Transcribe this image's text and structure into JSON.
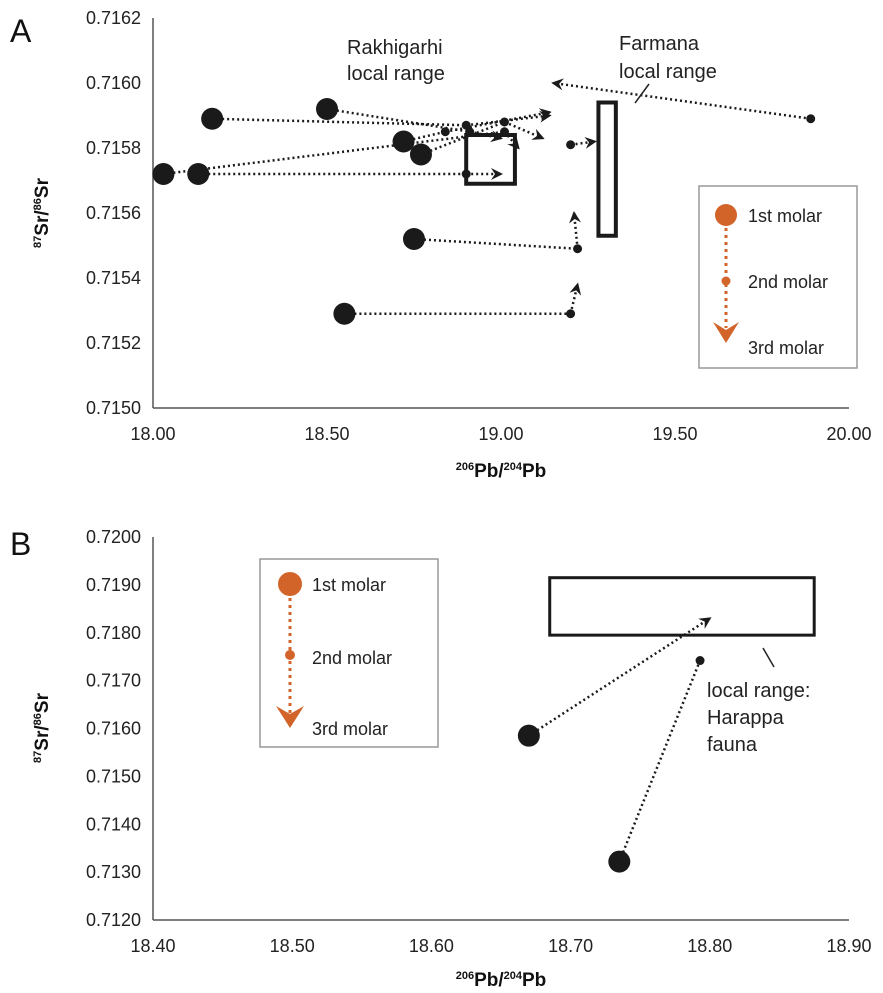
{
  "chart_data": [
    {
      "panel": "A",
      "type": "scatter",
      "xlabel": {
        "sup1": "206",
        "m1": "Pb/",
        "sup2": "204",
        "m2": "Pb"
      },
      "ylabel": {
        "sup1": "87",
        "m1": "Sr/",
        "sup2": "86",
        "m2": "Sr"
      },
      "xlim": [
        18.0,
        20.0
      ],
      "ylim": [
        0.715,
        0.7162
      ],
      "xticks": [
        "18.00",
        "18.50",
        "19.00",
        "19.50",
        "20.00"
      ],
      "yticks": [
        "0.7150",
        "0.7152",
        "0.7154",
        "0.7156",
        "0.7158",
        "0.7160",
        "0.7162"
      ],
      "grid": false,
      "local_ranges": [
        {
          "label_lines": [
            "Rakhigarhi",
            "local range"
          ],
          "x": [
            18.9,
            19.04
          ],
          "y": [
            0.71569,
            0.71584
          ]
        },
        {
          "label_lines": [
            "Farmana",
            "local range"
          ],
          "x": [
            19.28,
            19.33
          ],
          "y": [
            0.71553,
            0.71594
          ]
        }
      ],
      "individuals": [
        {
          "m1": [
            18.17,
            0.71589
          ],
          "m2": [
            18.9,
            0.71587
          ],
          "m3": [
            19.14,
            0.7159
          ]
        },
        {
          "m1": [
            18.5,
            0.71592
          ],
          "m2": [
            18.91,
            0.71585
          ],
          "m3": [
            19.0,
            0.71583
          ]
        },
        {
          "m1": [
            18.72,
            0.71582
          ],
          "m2": [
            18.84,
            0.71585
          ],
          "m3": [
            19.14,
            0.71591
          ]
        },
        {
          "m1": [
            18.77,
            0.71578
          ],
          "m2": [
            19.01,
            0.71588
          ],
          "m3": [
            19.12,
            0.71583
          ]
        },
        {
          "m1": [
            18.03,
            0.71572
          ],
          "m2": [
            19.01,
            0.71585
          ],
          "m3": [
            19.05,
            0.7158
          ]
        },
        {
          "m1": [
            18.13,
            0.71572
          ],
          "m2": [
            18.9,
            0.71572
          ],
          "m3": [
            19.0,
            0.71572
          ]
        },
        {
          "m1": [
            18.75,
            0.71552
          ],
          "m2": [
            19.22,
            0.71549
          ],
          "m3": [
            19.21,
            0.7156
          ]
        },
        {
          "m1": [
            18.55,
            0.71529
          ],
          "m2": [
            19.2,
            0.71529
          ],
          "m3": [
            19.22,
            0.71538
          ]
        },
        {
          "m2": [
            19.89,
            0.71589
          ],
          "m3": [
            19.15,
            0.716
          ]
        },
        {
          "m2": [
            19.2,
            0.71581
          ],
          "m3": [
            19.27,
            0.71582
          ]
        }
      ],
      "legend": {
        "position": "right",
        "entries": [
          "1st molar",
          "2nd molar",
          "3rd molar"
        ]
      }
    },
    {
      "panel": "B",
      "type": "scatter",
      "xlabel": {
        "sup1": "206",
        "m1": "Pb/",
        "sup2": "204",
        "m2": "Pb"
      },
      "ylabel": {
        "sup1": "87",
        "m1": "Sr/",
        "sup2": "86",
        "m2": "Sr"
      },
      "xlim": [
        18.4,
        18.9
      ],
      "ylim": [
        0.712,
        0.72
      ],
      "xticks": [
        "18.40",
        "18.50",
        "18.60",
        "18.70",
        "18.80",
        "18.90"
      ],
      "yticks": [
        "0.7120",
        "0.7130",
        "0.7140",
        "0.7150",
        "0.7160",
        "0.7170",
        "0.7180",
        "0.7190",
        "0.7200"
      ],
      "grid": false,
      "local_ranges": [
        {
          "label_lines": [
            "local range:",
            "Harappa",
            "fauna"
          ],
          "x": [
            18.685,
            18.875
          ],
          "y": [
            0.71795,
            0.71915
          ]
        }
      ],
      "individuals": [
        {
          "m1": [
            18.67,
            0.71585
          ],
          "m3": [
            18.8,
            0.7183
          ]
        },
        {
          "m1": [
            18.735,
            0.71322
          ],
          "m2": [
            18.793,
            0.71742
          ]
        }
      ],
      "legend": {
        "position": "upper-left",
        "entries": [
          "1st molar",
          "2nd molar",
          "3rd molar"
        ]
      }
    }
  ],
  "colors": {
    "points": "#1a1a1a",
    "legend_accent": "#d2642a",
    "legend_border": "#999999",
    "axes": "#555555"
  }
}
